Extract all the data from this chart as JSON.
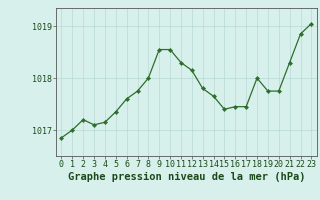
{
  "x": [
    0,
    1,
    2,
    3,
    4,
    5,
    6,
    7,
    8,
    9,
    10,
    11,
    12,
    13,
    14,
    15,
    16,
    17,
    18,
    19,
    20,
    21,
    22,
    23
  ],
  "y": [
    1016.85,
    1017.0,
    1017.2,
    1017.1,
    1017.15,
    1017.35,
    1017.6,
    1017.75,
    1018.0,
    1018.55,
    1018.55,
    1018.3,
    1018.15,
    1017.8,
    1017.65,
    1017.4,
    1017.45,
    1017.45,
    1018.0,
    1017.75,
    1017.75,
    1018.3,
    1018.85,
    1019.05
  ],
  "line_color": "#2d6e2d",
  "marker": "D",
  "marker_size": 2.2,
  "bg_color": "#d8f0ec",
  "grid_color": "#b8d8d4",
  "axis_bg": "#d8f0ec",
  "xlabel": "Graphe pression niveau de la mer (hPa)",
  "xlabel_fontsize": 7.5,
  "xlabel_fontweight": "bold",
  "ylabel_ticks": [
    1017,
    1018,
    1019
  ],
  "xlim": [
    -0.5,
    23.5
  ],
  "ylim": [
    1016.5,
    1019.35
  ],
  "tick_label_fontsize": 6.0,
  "spine_color": "#555555",
  "label_color": "#1a4a1a"
}
